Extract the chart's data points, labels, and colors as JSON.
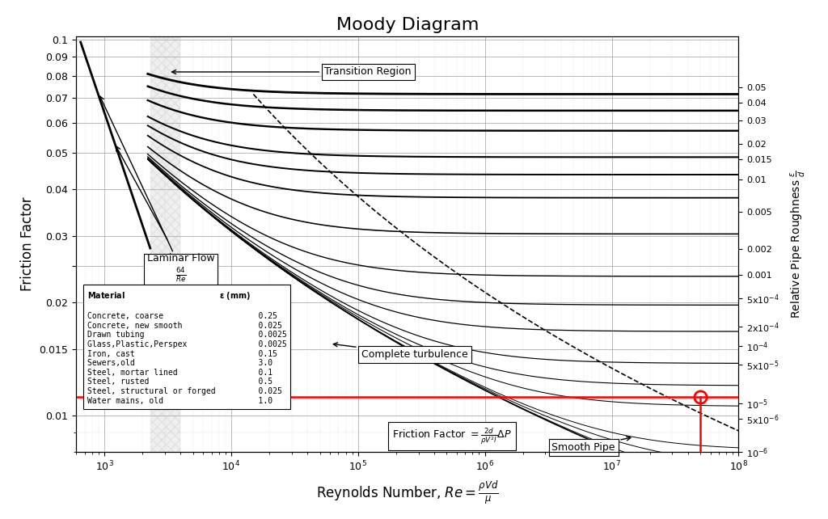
{
  "title": "Moody Diagram",
  "xlabel": "Reynolds Number, $Re = \\frac{\\rho V d}{\\mu}$",
  "ylabel": "Friction Factor",
  "ylabel_right": "Relative Pipe Roughness $\\frac{\\varepsilon}{d}$",
  "roughness_values": [
    0.05,
    0.04,
    0.03,
    0.02,
    0.015,
    0.01,
    0.005,
    0.002,
    0.001,
    0.0005,
    0.0002,
    0.0001,
    5e-05,
    1e-05,
    5e-06,
    1e-06
  ],
  "rr_labels": [
    "0.05",
    "0.04",
    "0.03",
    "0.02",
    "0.015",
    "0.01",
    "0.005",
    "0.002",
    "0.001",
    "5x10$^{-4}$",
    "2x10$^{-4}$",
    "10$^{-4}$",
    "5x10$^{-5}$",
    "10$^{-5}$",
    "5x10$^{-6}$",
    "10$^{-6}$"
  ],
  "red_line_f": 0.0112,
  "red_marker_Re": 50000000.0,
  "ylim": [
    0.008,
    0.102
  ],
  "xlim": [
    600,
    100000000.0
  ],
  "y_major_ticks": [
    0.01,
    0.015,
    0.02,
    0.025,
    0.03,
    0.04,
    0.05,
    0.06,
    0.07,
    0.08,
    0.09,
    0.1
  ],
  "y_tick_labels": [
    "0.01",
    "0.015",
    "0.02",
    "",
    "0.03",
    "0.04",
    "0.05",
    "0.06",
    "0.07",
    "0.08",
    "0.09",
    "0.1"
  ],
  "materials": [
    [
      "Concrete, coarse",
      "0.25"
    ],
    [
      "Concrete, new smooth",
      "0.025"
    ],
    [
      "Drawn tubing",
      "0.0025"
    ],
    [
      "Glass,Plastic,Perspex",
      "0.0025"
    ],
    [
      "Iron, cast",
      "0.15"
    ],
    [
      "Sewers,old",
      "3.0"
    ],
    [
      "Steel, mortar lined",
      "0.1"
    ],
    [
      "Steel, rusted",
      "0.5"
    ],
    [
      "Steel, structural or forged",
      "0.025"
    ],
    [
      "Water mains, old",
      "1.0"
    ]
  ]
}
